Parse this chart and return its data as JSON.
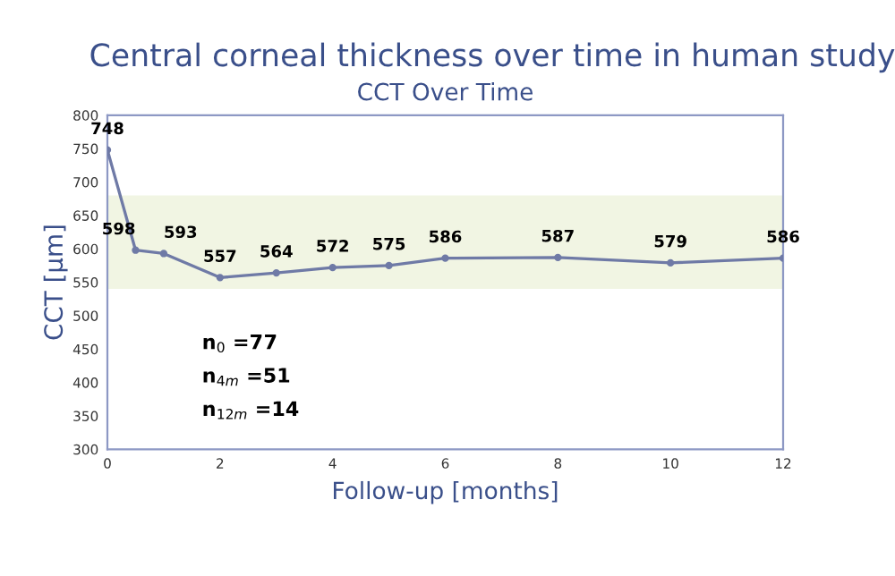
{
  "chart_data": {
    "type": "line",
    "title": "Central corneal thickness over time in human study",
    "subtitle": "CCT Over Time",
    "xlabel": "Follow-up [months]",
    "ylabel": "CCT [µm]",
    "x": [
      0,
      0.5,
      1,
      2,
      3,
      4,
      5,
      6,
      8,
      10,
      12
    ],
    "series": [
      {
        "color": "#6f7aa6",
        "values": [
          748,
          598,
          593,
          557,
          564,
          572,
          575,
          586,
          587,
          579,
          586
        ]
      }
    ],
    "data_labels": true,
    "marker": "circle",
    "line_style": "solid",
    "grid": false,
    "legend": false,
    "xlim": [
      0,
      12
    ],
    "xticks": [
      0,
      2,
      4,
      6,
      8,
      10,
      12
    ],
    "ylim": [
      300,
      800
    ],
    "yticks": [
      300,
      350,
      400,
      450,
      500,
      550,
      600,
      650,
      700,
      750,
      800
    ],
    "bands": [
      {
        "axis": "y",
        "from": 540,
        "to": 680,
        "color": "#f1f5e3"
      }
    ],
    "annotations": [
      "n$_{0}$ =77",
      "n$_{4m}$ =51",
      "n$_{12m}$ =14"
    ]
  }
}
